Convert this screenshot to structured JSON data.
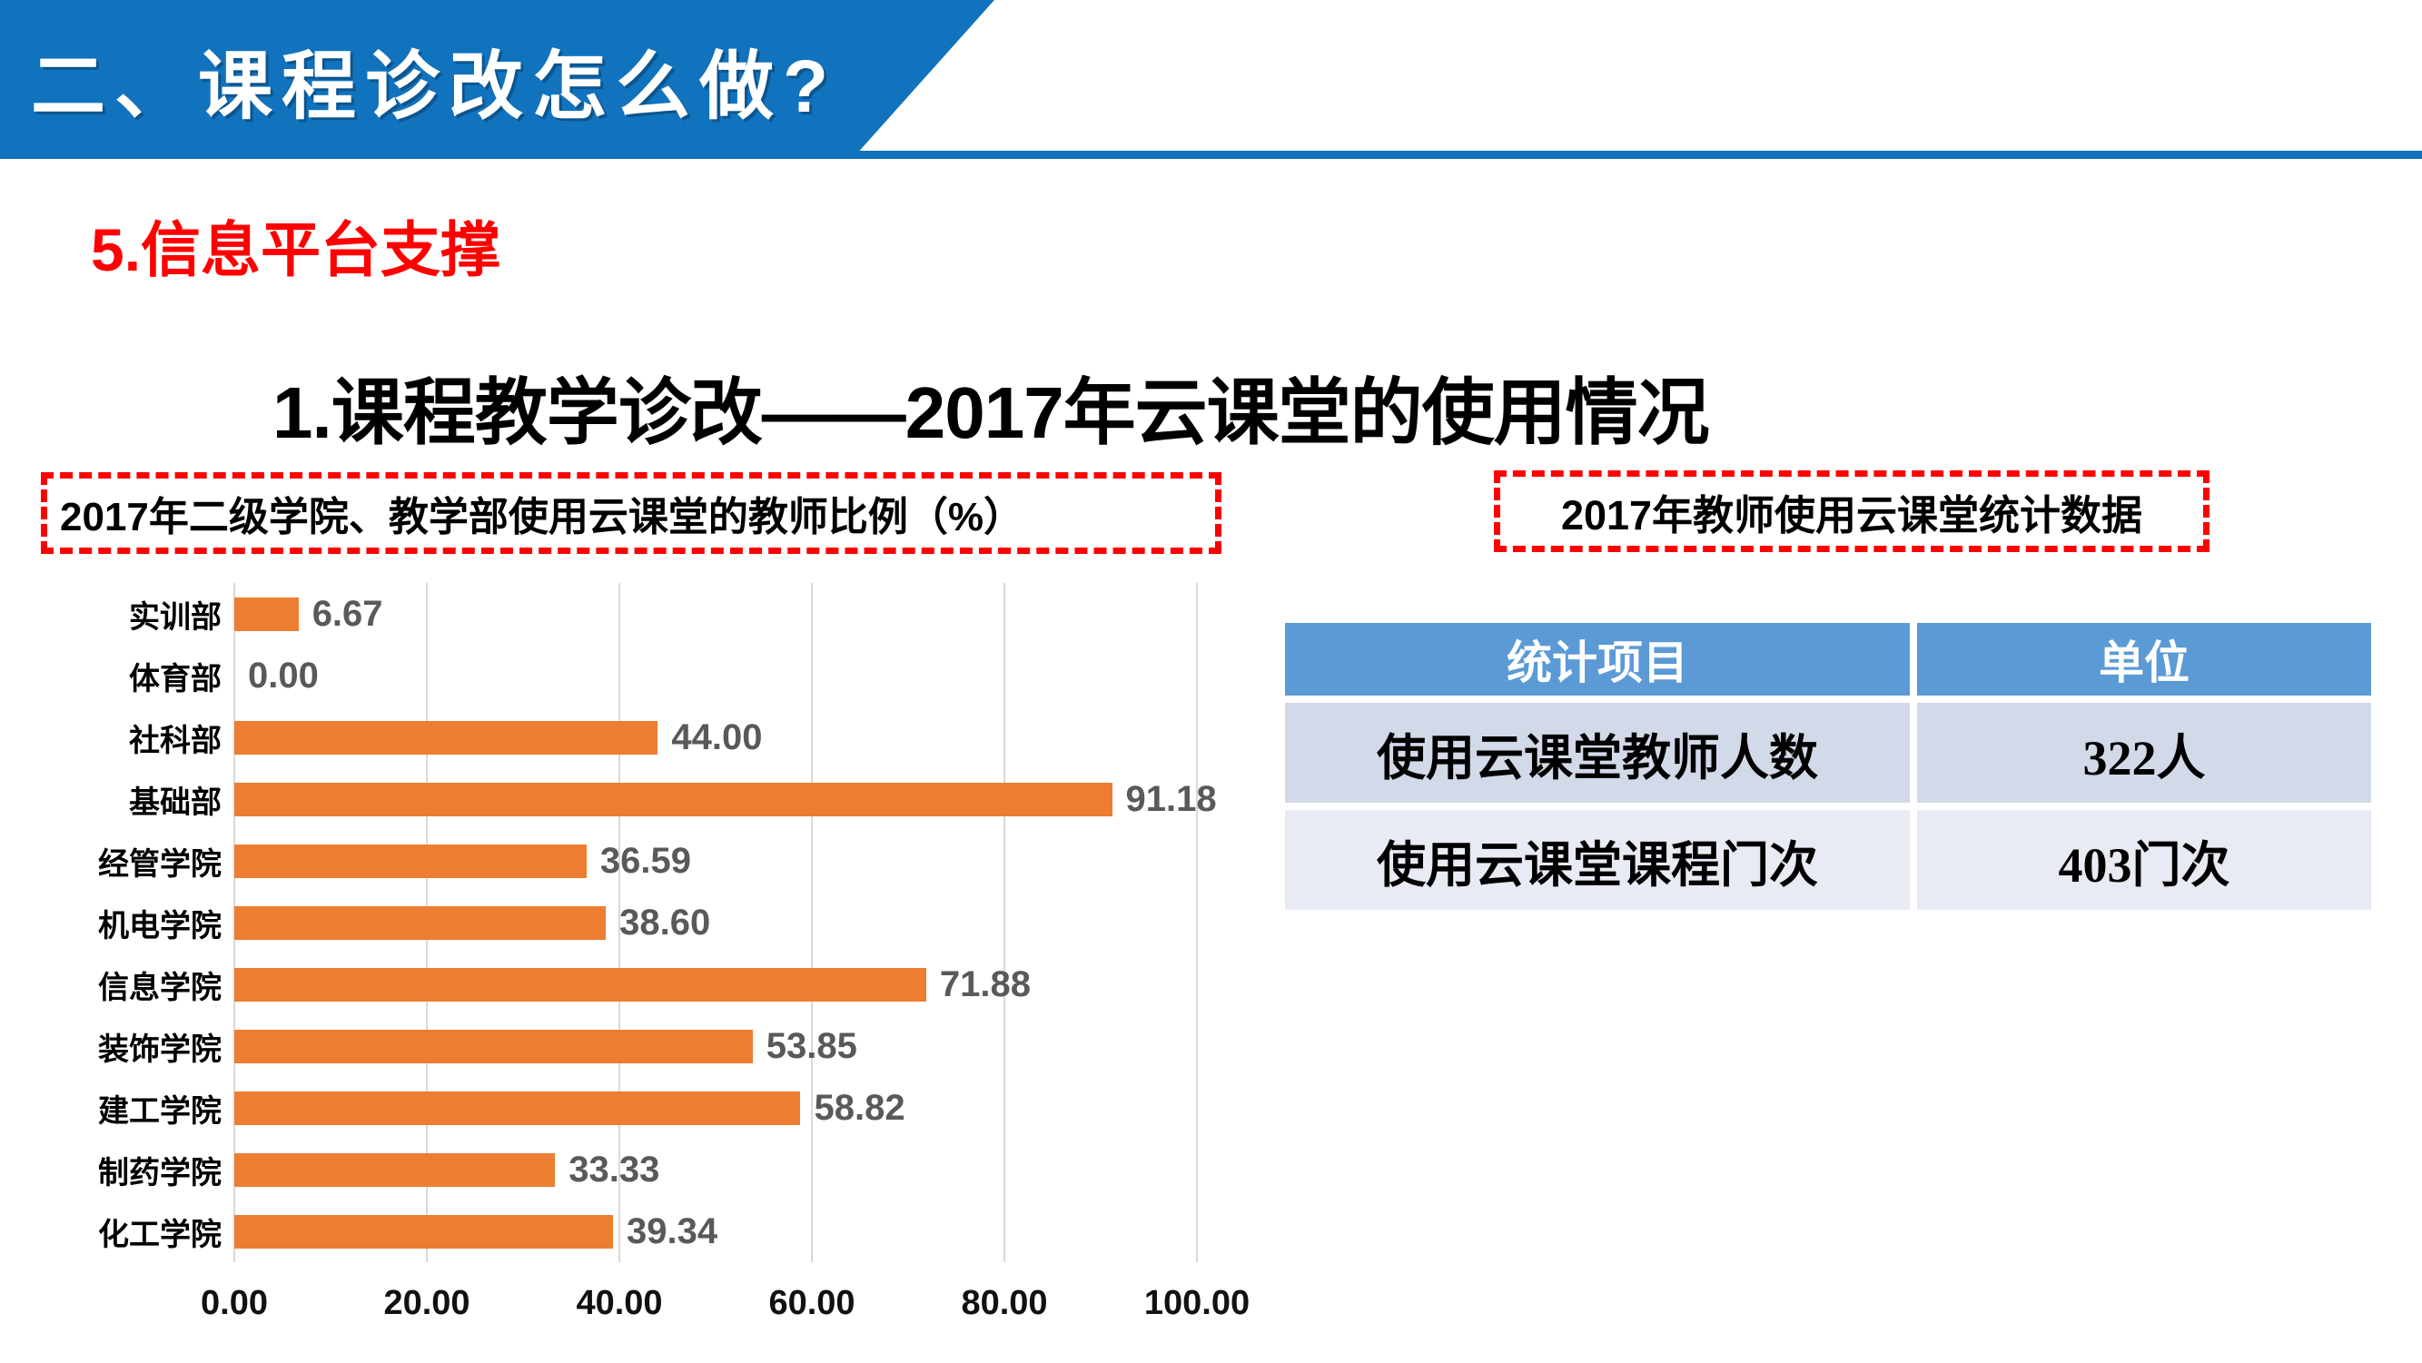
{
  "header": {
    "banner_title": "二、课程诊改怎么做?",
    "banner_color": "#1172BE"
  },
  "section": {
    "subtitle": "5.信息平台支撑",
    "subtitle_color": "#FF0000",
    "main_title": "1.课程教学诊改——2017年云课堂的使用情况"
  },
  "chart_panel": {
    "caption": "2017年二级学院、教学部使用云课堂的教师比例（%）"
  },
  "table_panel": {
    "caption": "2017年教师使用云课堂统计数据",
    "table": {
      "headers": [
        "统计项目",
        "单位"
      ],
      "rows": [
        [
          "使用云课堂教师人数",
          "322人"
        ],
        [
          "使用云课堂课程门次",
          "403门次"
        ]
      ],
      "header_color": "#5B9AD5",
      "row_colors": [
        "#D2D9E8",
        "#E8EBF4"
      ]
    }
  },
  "chart_data": {
    "type": "bar",
    "orientation": "horizontal",
    "title": "2017年二级学院、教学部使用云课堂的教师比例（%）",
    "categories": [
      "实训部",
      "体育部",
      "社科部",
      "基础部",
      "经管学院",
      "机电学院",
      "信息学院",
      "装饰学院",
      "建工学院",
      "制药学院",
      "化工学院"
    ],
    "values": [
      6.67,
      0.0,
      44.0,
      91.18,
      36.59,
      38.6,
      71.88,
      53.85,
      58.82,
      33.33,
      39.34
    ],
    "value_labels": [
      "6.67",
      "0.00",
      "44.00",
      "91.18",
      "36.59",
      "38.60",
      "71.88",
      "53.85",
      "58.82",
      "33.33",
      "39.34"
    ],
    "x_ticks": [
      "0.00",
      "20.00",
      "40.00",
      "60.00",
      "80.00",
      "100.00"
    ],
    "x_tick_values": [
      0,
      20,
      40,
      60,
      80,
      100
    ],
    "xlim": [
      0,
      100
    ],
    "xlabel": "",
    "ylabel": "",
    "grid": true,
    "bar_color": "#ED7D31",
    "legend": "none"
  }
}
